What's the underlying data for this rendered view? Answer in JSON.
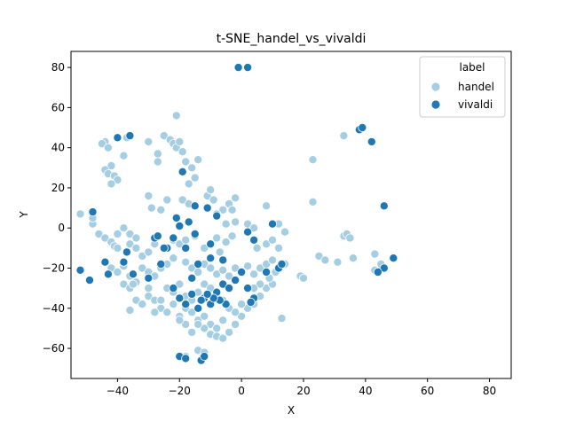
{
  "colors": {
    "handel": "#a6cee3",
    "vivaldi": "#1f78b4",
    "point_edge": "#ffffff",
    "axes": "#000000"
  },
  "chart_data": {
    "type": "scatter",
    "title": "t-SNE_handel_vs_vivaldi",
    "xlabel": "X",
    "ylabel": "Y",
    "xlim": [
      -55,
      87
    ],
    "ylim": [
      -75,
      88
    ],
    "xticks": [
      -40,
      -20,
      0,
      20,
      40,
      60,
      80
    ],
    "yticks": [
      -60,
      -40,
      -20,
      0,
      20,
      40,
      60,
      80
    ],
    "xtick_labels": [
      "−40",
      "−20",
      "0",
      "20",
      "40",
      "60",
      "80"
    ],
    "ytick_labels": [
      "−60",
      "−40",
      "−20",
      "0",
      "20",
      "40",
      "60",
      "80"
    ],
    "grid": false,
    "legend": {
      "title": "label",
      "placement": "top-right",
      "entries": [
        {
          "name": "handel",
          "color": "#a6cee3"
        },
        {
          "name": "vivaldi",
          "color": "#1f78b4"
        }
      ]
    },
    "series": [
      {
        "name": "handel",
        "color": "#a6cee3",
        "points": [
          [
            -44,
            43
          ],
          [
            -45,
            42
          ],
          [
            -43,
            40
          ],
          [
            -42,
            31
          ],
          [
            -44,
            29
          ],
          [
            -43,
            27
          ],
          [
            -41,
            26
          ],
          [
            -40,
            24
          ],
          [
            -42,
            22
          ],
          [
            -38,
            36
          ],
          [
            -37,
            45
          ],
          [
            -30,
            43
          ],
          [
            -27,
            37
          ],
          [
            -25,
            46
          ],
          [
            -23,
            44
          ],
          [
            -22,
            42
          ],
          [
            -21,
            40
          ],
          [
            -19,
            38
          ],
          [
            -20,
            43
          ],
          [
            -18,
            33
          ],
          [
            -16,
            30
          ],
          [
            -17,
            22
          ],
          [
            -15,
            25
          ],
          [
            -14,
            34
          ],
          [
            -21,
            56
          ],
          [
            -27,
            33
          ],
          [
            -30,
            16
          ],
          [
            -29,
            10
          ],
          [
            -26,
            9
          ],
          [
            -24,
            14
          ],
          [
            -19,
            14
          ],
          [
            -17,
            12
          ],
          [
            -11,
            16
          ],
          [
            -10,
            19
          ],
          [
            -9,
            14
          ],
          [
            -6,
            9
          ],
          [
            -4,
            12
          ],
          [
            -3,
            9
          ],
          [
            -2,
            15
          ],
          [
            -8,
            7
          ],
          [
            -5,
            2
          ],
          [
            -2,
            3
          ],
          [
            2,
            2
          ],
          [
            4,
            0
          ],
          [
            -48,
            2
          ],
          [
            -46,
            -3
          ],
          [
            -44,
            -5
          ],
          [
            -42,
            -7
          ],
          [
            -40,
            -3
          ],
          [
            -38,
            0
          ],
          [
            -36,
            -3
          ],
          [
            -34,
            -5
          ],
          [
            -41,
            -9
          ],
          [
            -36,
            -8
          ],
          [
            -34,
            -10
          ],
          [
            -32,
            -14
          ],
          [
            -30,
            -12
          ],
          [
            -28,
            -8
          ],
          [
            -25,
            -10
          ],
          [
            -22,
            -6
          ],
          [
            -20,
            -8
          ],
          [
            -18,
            -6
          ],
          [
            -15,
            -4
          ],
          [
            -12,
            -10
          ],
          [
            -10,
            -8
          ],
          [
            -8,
            -5
          ],
          [
            -7,
            -12
          ],
          [
            -5,
            -7
          ],
          [
            -3,
            -4
          ],
          [
            -44,
            -17
          ],
          [
            -42,
            -20
          ],
          [
            -40,
            -22
          ],
          [
            -38,
            -19
          ],
          [
            -36,
            -24
          ],
          [
            -34,
            -27
          ],
          [
            -32,
            -20
          ],
          [
            -30,
            -22
          ],
          [
            -28,
            -24
          ],
          [
            -26,
            -20
          ],
          [
            -24,
            -18
          ],
          [
            -22,
            -15
          ],
          [
            -18,
            -17
          ],
          [
            -16,
            -20
          ],
          [
            -14,
            -22
          ],
          [
            -12,
            -18
          ],
          [
            -10,
            -20
          ],
          [
            -8,
            -23
          ],
          [
            -6,
            -21
          ],
          [
            -4,
            -24
          ],
          [
            -2,
            -20
          ],
          [
            0,
            -22
          ],
          [
            2,
            -19
          ],
          [
            4,
            -23
          ],
          [
            6,
            -20
          ],
          [
            8,
            -18
          ],
          [
            10,
            -16
          ],
          [
            12,
            -20
          ],
          [
            14,
            -18
          ],
          [
            -38,
            -28
          ],
          [
            -36,
            -30
          ],
          [
            -34,
            -36
          ],
          [
            -32,
            -38
          ],
          [
            -30,
            -34
          ],
          [
            -28,
            -36
          ],
          [
            -26,
            -40
          ],
          [
            -24,
            -42
          ],
          [
            -22,
            -38
          ],
          [
            -20,
            -44
          ],
          [
            -18,
            -40
          ],
          [
            -16,
            -42
          ],
          [
            -14,
            -46
          ],
          [
            -12,
            -44
          ],
          [
            -10,
            -48
          ],
          [
            -8,
            -50
          ],
          [
            -6,
            -46
          ],
          [
            -4,
            -52
          ],
          [
            -2,
            -48
          ],
          [
            0,
            -44
          ],
          [
            2,
            -40
          ],
          [
            4,
            -38
          ],
          [
            6,
            -34
          ],
          [
            8,
            -30
          ],
          [
            10,
            -28
          ],
          [
            -24,
            -30
          ],
          [
            -22,
            -32
          ],
          [
            -20,
            -28
          ],
          [
            -18,
            -34
          ],
          [
            -16,
            -36
          ],
          [
            -14,
            -32
          ],
          [
            -12,
            -28
          ],
          [
            -10,
            -30
          ],
          [
            -8,
            -34
          ],
          [
            -6,
            -36
          ],
          [
            -4,
            -40
          ],
          [
            -2,
            -42
          ],
          [
            0,
            -38
          ],
          [
            -12,
            -50
          ],
          [
            -10,
            -53
          ],
          [
            -8,
            -54
          ],
          [
            -6,
            -55
          ],
          [
            -4,
            -52
          ],
          [
            -14,
            -48
          ],
          [
            -16,
            -52
          ],
          [
            -18,
            -48
          ],
          [
            -20,
            -46
          ],
          [
            -36,
            -41
          ],
          [
            -35,
            -28
          ],
          [
            -18,
            -64
          ],
          [
            -14,
            -61
          ],
          [
            -12,
            -62
          ],
          [
            -48,
            5
          ],
          [
            -52,
            7
          ],
          [
            -40,
            -10
          ],
          [
            -30,
            -30
          ],
          [
            -28,
            -42
          ],
          [
            -26,
            -36
          ],
          [
            5,
            -10
          ],
          [
            8,
            -8
          ],
          [
            10,
            -6
          ],
          [
            12,
            -10
          ],
          [
            6,
            -28
          ],
          [
            4,
            -30
          ],
          [
            9,
            -25
          ],
          [
            11,
            -22
          ],
          [
            13,
            -45
          ],
          [
            8,
            11
          ],
          [
            12,
            2
          ],
          [
            14,
            -2
          ],
          [
            19,
            -24
          ],
          [
            20,
            -25
          ],
          [
            23,
            34
          ],
          [
            23,
            13
          ],
          [
            25,
            -14
          ],
          [
            27,
            -16
          ],
          [
            31,
            -17
          ],
          [
            33,
            -4
          ],
          [
            34,
            -3
          ],
          [
            35,
            -5
          ],
          [
            36,
            -15
          ],
          [
            33,
            46
          ],
          [
            43,
            -21
          ],
          [
            44,
            -22
          ],
          [
            45,
            -18
          ],
          [
            43,
            -13
          ],
          [
            42,
            43
          ]
        ]
      },
      {
        "name": "vivaldi",
        "color": "#1f78b4",
        "points": [
          [
            -1,
            80
          ],
          [
            2,
            80
          ],
          [
            -40,
            45
          ],
          [
            -36,
            46
          ],
          [
            38,
            49
          ],
          [
            39,
            50
          ],
          [
            42,
            43
          ],
          [
            46,
            11
          ],
          [
            49,
            -15
          ],
          [
            46,
            -20
          ],
          [
            44,
            -22
          ],
          [
            -19,
            28
          ],
          [
            -15,
            11
          ],
          [
            -11,
            10
          ],
          [
            -21,
            5
          ],
          [
            -20,
            1
          ],
          [
            -17,
            3
          ],
          [
            -15,
            -3
          ],
          [
            -10,
            -8
          ],
          [
            -8,
            6
          ],
          [
            -28,
            -5
          ],
          [
            -27,
            -4
          ],
          [
            -24,
            -10
          ],
          [
            -22,
            -5
          ],
          [
            -18,
            -10
          ],
          [
            10,
            2
          ],
          [
            2,
            -2
          ],
          [
            4,
            -6
          ],
          [
            -48,
            8
          ],
          [
            -52,
            -21
          ],
          [
            -49,
            -26
          ],
          [
            -44,
            -17
          ],
          [
            -43,
            -23
          ],
          [
            -38,
            -17
          ],
          [
            -37,
            -12
          ],
          [
            -35,
            -23
          ],
          [
            -30,
            -25
          ],
          [
            -26,
            -18
          ],
          [
            -25,
            -10
          ],
          [
            -22,
            -30
          ],
          [
            -20,
            -35
          ],
          [
            -18,
            -38
          ],
          [
            -16,
            -33
          ],
          [
            -14,
            -40
          ],
          [
            -12,
            -35
          ],
          [
            -10,
            -38
          ],
          [
            -8,
            -32
          ],
          [
            -6,
            -28
          ],
          [
            -4,
            -30
          ],
          [
            -2,
            -26
          ],
          [
            0,
            -22
          ],
          [
            2,
            -30
          ],
          [
            4,
            -35
          ],
          [
            3,
            -37
          ],
          [
            -6,
            -16
          ],
          [
            -10,
            -15
          ],
          [
            -14,
            -18
          ],
          [
            -16,
            -25
          ],
          [
            -20,
            -64
          ],
          [
            -18,
            -65
          ],
          [
            -13,
            -66
          ],
          [
            -12,
            -64
          ],
          [
            8,
            -22
          ],
          [
            12,
            -20
          ],
          [
            13,
            -18
          ],
          [
            -5,
            -38
          ],
          [
            -7,
            -36
          ],
          [
            -9,
            -35
          ],
          [
            -11,
            -33
          ],
          [
            -13,
            -36
          ]
        ]
      }
    ]
  }
}
